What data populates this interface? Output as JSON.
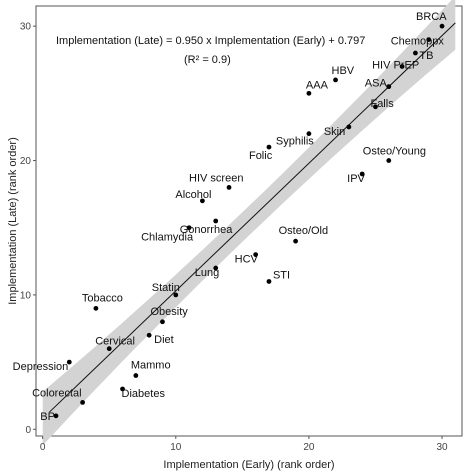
{
  "chart_data": {
    "type": "scatter",
    "xlabel": "Implementation (Early) (rank order)",
    "ylabel": "Implementation (Late) (rank order)",
    "xlim": [
      -0.5,
      31.5
    ],
    "ylim": [
      -0.5,
      31.5
    ],
    "x_ticks": [
      0,
      10,
      20,
      30
    ],
    "y_ticks": [
      0,
      10,
      20,
      30
    ],
    "grid": false,
    "annotation": {
      "line1": "Implementation (Late) = 0.950 x Implementation (Early) + 0.797",
      "line2": "(R² = 0.9)"
    },
    "regression": {
      "slope": 0.95,
      "intercept": 0.797,
      "band_halfwidth_mid": 1.1,
      "band_halfwidth_edge": 2.0
    },
    "points": [
      {
        "name": "BP",
        "x": 1,
        "y": 1
      },
      {
        "name": "Colorectal",
        "x": 3,
        "y": 2
      },
      {
        "name": "Depression",
        "x": 2,
        "y": 5
      },
      {
        "name": "Diabetes",
        "x": 6,
        "y": 3
      },
      {
        "name": "Mammo",
        "x": 7,
        "y": 4
      },
      {
        "name": "Cervical",
        "x": 5,
        "y": 6
      },
      {
        "name": "Diet",
        "x": 8,
        "y": 7
      },
      {
        "name": "Obesity",
        "x": 9,
        "y": 8
      },
      {
        "name": "Tobacco",
        "x": 4,
        "y": 9
      },
      {
        "name": "Statin",
        "x": 10,
        "y": 10
      },
      {
        "name": "STI",
        "x": 17,
        "y": 11
      },
      {
        "name": "Lung",
        "x": 13,
        "y": 12
      },
      {
        "name": "HCV",
        "x": 16,
        "y": 13
      },
      {
        "name": "Osteo/Old",
        "x": 19,
        "y": 14
      },
      {
        "name": "Chlamydia",
        "x": 11,
        "y": 15
      },
      {
        "name": "Gonorrhea",
        "x": 13,
        "y": 15.5
      },
      {
        "name": "Alcohol",
        "x": 12,
        "y": 17
      },
      {
        "name": "HIV screen",
        "x": 14,
        "y": 18
      },
      {
        "name": "IPV",
        "x": 24,
        "y": 19
      },
      {
        "name": "Osteo/Young",
        "x": 26,
        "y": 20
      },
      {
        "name": "Folic",
        "x": 17,
        "y": 21
      },
      {
        "name": "Syphilis",
        "x": 20,
        "y": 22
      },
      {
        "name": "Skin",
        "x": 23,
        "y": 22.5
      },
      {
        "name": "Falls",
        "x": 25,
        "y": 24
      },
      {
        "name": "AAA",
        "x": 20,
        "y": 25
      },
      {
        "name": "HBV",
        "x": 22,
        "y": 26
      },
      {
        "name": "ASA",
        "x": 26,
        "y": 25.5
      },
      {
        "name": "HIV PrEP",
        "x": 27,
        "y": 27
      },
      {
        "name": "TB",
        "x": 28,
        "y": 28
      },
      {
        "name": "Chemoppx",
        "x": 29,
        "y": 29
      },
      {
        "name": "BRCA",
        "x": 30,
        "y": 30
      }
    ]
  }
}
